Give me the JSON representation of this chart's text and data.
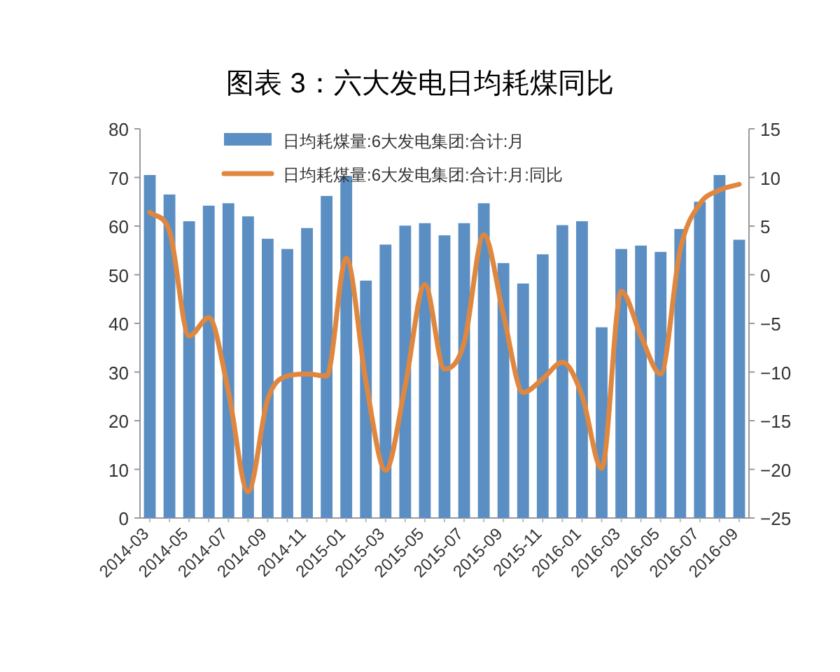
{
  "chart_data": {
    "type": "bar",
    "title": "图表 3：六大发电日均耗煤同比",
    "categories": [
      "2014-03",
      null,
      "2014-05",
      null,
      "2014-07",
      null,
      "2014-09",
      null,
      "2014-11",
      null,
      "2015-01",
      null,
      "2015-03",
      null,
      "2015-05",
      null,
      "2015-07",
      null,
      "2015-09",
      null,
      "2015-11",
      null,
      "2016-01",
      null,
      "2016-03",
      null,
      "2016-05",
      null,
      "2016-07",
      null,
      "2016-09"
    ],
    "series": [
      {
        "name": "日均耗煤量:6大发电集团:合计:月",
        "color": "#5b8fc4",
        "values": [
          70.5,
          66.5,
          61,
          64.2,
          64.7,
          62,
          57.4,
          55.3,
          59.6,
          66.2,
          70.3,
          48.8,
          56.2,
          60.1,
          60.6,
          58.1,
          60.6,
          64.7,
          52.4,
          48.2,
          54.2,
          60.2,
          61,
          39.2,
          55.3,
          56,
          54.7,
          59.4,
          65,
          70.5,
          57.2
        ]
      },
      {
        "name": "日均耗煤量:6大发电集团:合计:月:同比",
        "color": "#e0873f",
        "type": "line",
        "axis": "y2",
        "values": [
          6.4,
          4.5,
          -6.3,
          -4.4,
          -12,
          -22.3,
          -12.8,
          -10.4,
          -10.2,
          -10.4,
          1.7,
          -11,
          -20.1,
          -11.4,
          -1,
          -9.7,
          -7,
          4.1,
          -4.1,
          -12.1,
          -10.7,
          -9,
          -12.4,
          -19.9,
          -1.7,
          -6.3,
          -10.2,
          2.6,
          7.3,
          8.7,
          9.3
        ]
      }
    ],
    "ylim": [
      0,
      80
    ],
    "yticks": [
      0,
      10,
      20,
      30,
      40,
      50,
      60,
      70,
      80
    ],
    "y2lim": [
      -25,
      15
    ],
    "y2ticks": [
      -25,
      -20,
      -15,
      -10,
      -5,
      0,
      5,
      10,
      15
    ],
    "legend": "top",
    "grid": false,
    "marker": "none"
  }
}
